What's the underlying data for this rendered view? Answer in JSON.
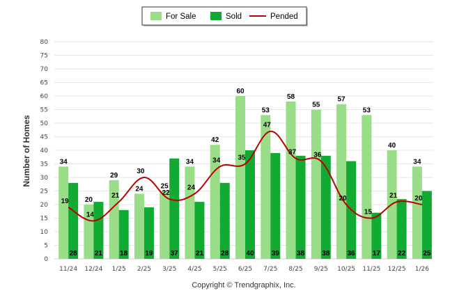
{
  "chart_data": {
    "type": "bar",
    "title": "",
    "xlabel": "",
    "ylabel": "Number of Homes",
    "ylim": [
      0,
      80
    ],
    "ytick_step": 5,
    "grid": true,
    "legend_position": "top-center",
    "credit": "Copyright © Trendgraphix, Inc.",
    "categories": [
      "11/24",
      "12/24",
      "1/25",
      "2/25",
      "3/25",
      "4/25",
      "5/25",
      "6/25",
      "7/25",
      "8/25",
      "9/25",
      "10/25",
      "11/25",
      "12/25",
      "1/26"
    ],
    "series": [
      {
        "name": "For Sale",
        "type": "bar",
        "color": "#99dd88",
        "values": [
          34,
          20,
          29,
          24,
          25,
          34,
          42,
          60,
          53,
          58,
          55,
          57,
          53,
          40,
          34
        ]
      },
      {
        "name": "Sold",
        "type": "bar",
        "color": "#11aa33",
        "values": [
          28,
          21,
          18,
          19,
          37,
          21,
          28,
          40,
          39,
          38,
          38,
          36,
          17,
          22,
          25
        ]
      },
      {
        "name": "Pended",
        "type": "line",
        "color": "#bb0000",
        "values": [
          19,
          14,
          21,
          30,
          22,
          24,
          34,
          35,
          47,
          37,
          36,
          20,
          15,
          21,
          20
        ]
      }
    ]
  }
}
